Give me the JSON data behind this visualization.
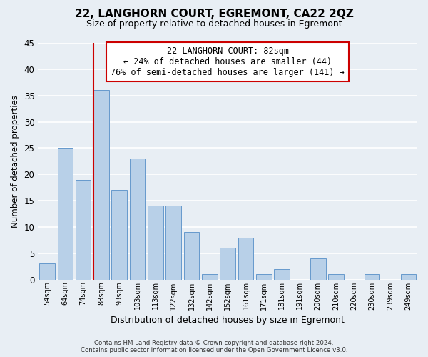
{
  "title": "22, LANGHORN COURT, EGREMONT, CA22 2QZ",
  "subtitle": "Size of property relative to detached houses in Egremont",
  "xlabel": "Distribution of detached houses by size in Egremont",
  "ylabel": "Number of detached properties",
  "bar_labels": [
    "54sqm",
    "64sqm",
    "74sqm",
    "83sqm",
    "93sqm",
    "103sqm",
    "113sqm",
    "122sqm",
    "132sqm",
    "142sqm",
    "152sqm",
    "161sqm",
    "171sqm",
    "181sqm",
    "191sqm",
    "200sqm",
    "210sqm",
    "220sqm",
    "230sqm",
    "239sqm",
    "249sqm"
  ],
  "bar_values": [
    3,
    25,
    19,
    36,
    17,
    23,
    14,
    14,
    9,
    1,
    6,
    8,
    1,
    2,
    0,
    4,
    1,
    0,
    1,
    0,
    1
  ],
  "bar_color": "#b8d0e8",
  "bar_edge_color": "#6699cc",
  "vline_bar_index": 3,
  "vline_color": "#cc0000",
  "ylim": [
    0,
    45
  ],
  "yticks": [
    0,
    5,
    10,
    15,
    20,
    25,
    30,
    35,
    40,
    45
  ],
  "annotation_title": "22 LANGHORN COURT: 82sqm",
  "annotation_line1": "← 24% of detached houses are smaller (44)",
  "annotation_line2": "76% of semi-detached houses are larger (141) →",
  "annotation_box_color": "#ffffff",
  "annotation_box_edge": "#cc0000",
  "footer_line1": "Contains HM Land Registry data © Crown copyright and database right 2024.",
  "footer_line2": "Contains public sector information licensed under the Open Government Licence v3.0.",
  "bg_color": "#e8eef4",
  "grid_color": "#ffffff"
}
